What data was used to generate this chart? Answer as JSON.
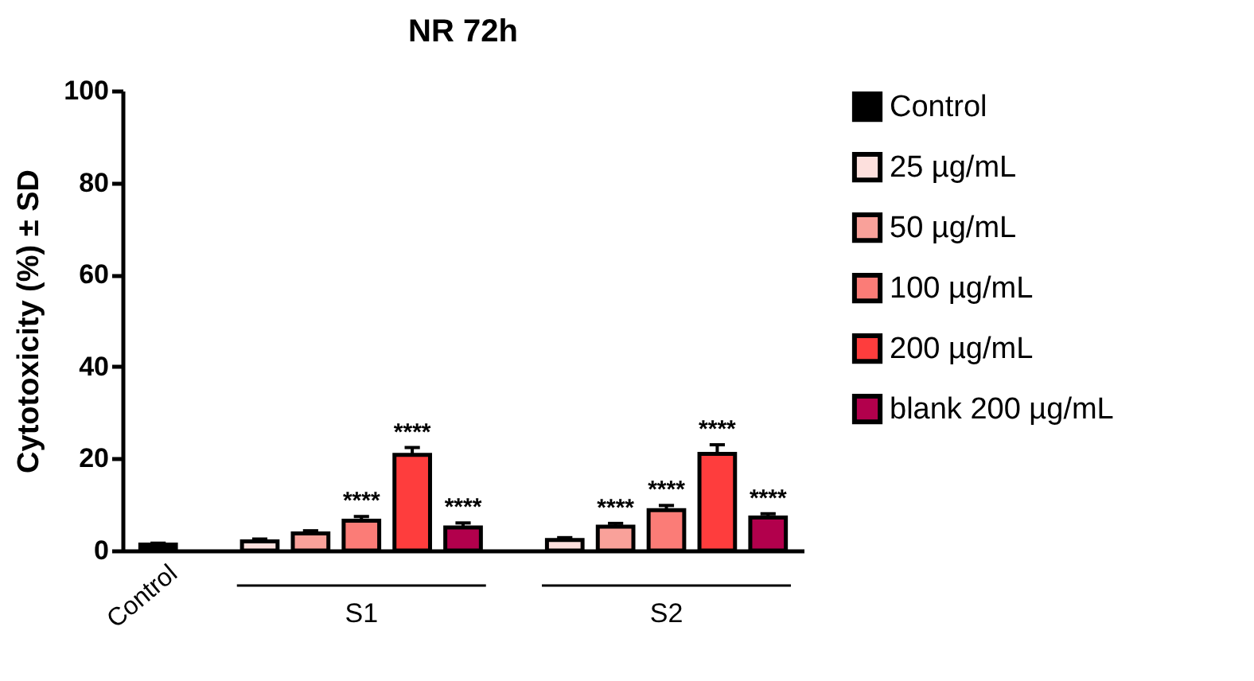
{
  "chart_data": {
    "type": "bar",
    "title": "NR 72h",
    "ylabel": "Cytotoxicity (%) ± SD",
    "categories": [
      "Control",
      "S1",
      "S2"
    ],
    "series": [
      {
        "name": "Control",
        "color": "#000000",
        "values": [
          1.3,
          null,
          null
        ],
        "errors": [
          0.3,
          null,
          null
        ],
        "value_labels": [
          null,
          null,
          null
        ]
      },
      {
        "name": "25 µg/mL",
        "color": "#fde0dd",
        "values": [
          null,
          2.0,
          2.3
        ],
        "errors": [
          null,
          0.5,
          0.5
        ],
        "value_labels": [
          null,
          null,
          null
        ]
      },
      {
        "name": "50 µg/mL",
        "color": "#f9a19a",
        "values": [
          null,
          3.7,
          5.2
        ],
        "errors": [
          null,
          0.6,
          0.7
        ],
        "value_labels": [
          null,
          null,
          "****"
        ]
      },
      {
        "name": "100 µg/mL",
        "color": "#fb7c77",
        "values": [
          null,
          6.5,
          8.8
        ],
        "errors": [
          null,
          0.9,
          1.0
        ],
        "value_labels": [
          null,
          "****",
          "****"
        ]
      },
      {
        "name": "200 µg/mL",
        "color": "#fe3d3d",
        "values": [
          null,
          20.8,
          21.0
        ],
        "errors": [
          null,
          1.6,
          2.0
        ],
        "value_labels": [
          null,
          "****",
          "****"
        ]
      },
      {
        "name": "blank 200 µg/mL",
        "color": "#b2004c",
        "values": [
          null,
          5.0,
          7.2
        ],
        "errors": [
          null,
          1.0,
          0.8
        ],
        "value_labels": [
          null,
          "****",
          "****"
        ]
      }
    ],
    "ylim": [
      0,
      100
    ],
    "yticks": [
      0,
      20,
      40,
      60,
      80,
      100
    ],
    "grid": false,
    "legend": "right"
  }
}
